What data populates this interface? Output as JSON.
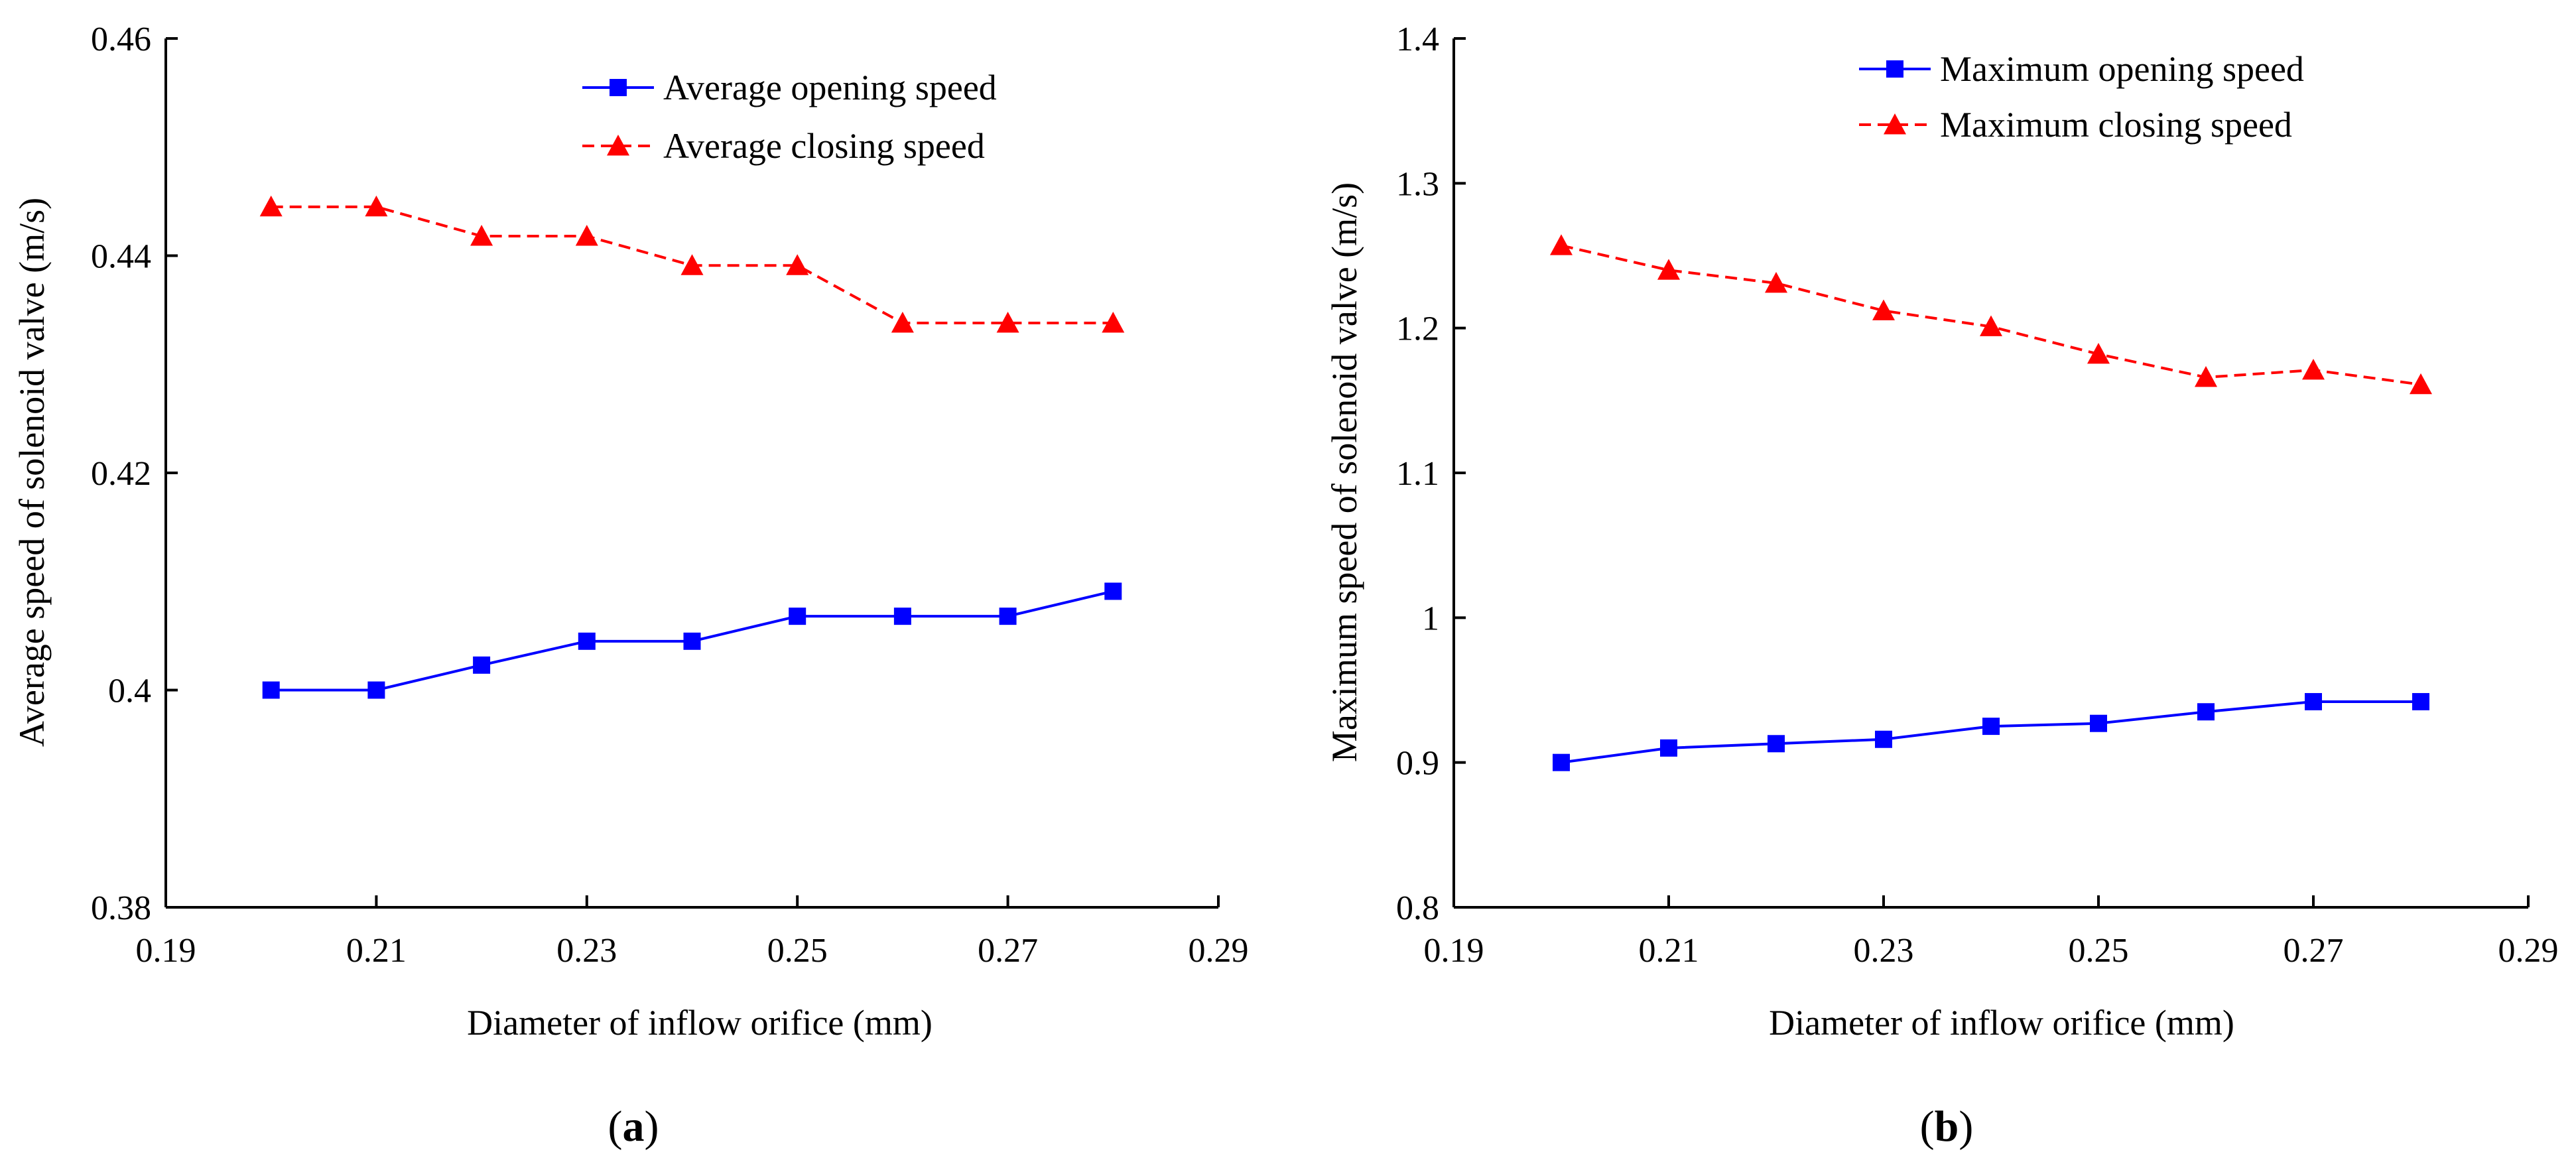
{
  "chart_data": [
    {
      "type": "line",
      "panel_label": "a",
      "title": "",
      "xlabel": "Diameter of inflow orifice (mm)",
      "ylabel": "Average speed of solenoid valve (m/s)",
      "xlim": [
        0.19,
        0.29
      ],
      "ylim": [
        0.38,
        0.46
      ],
      "x_ticks": [
        "0.19",
        "0.21",
        "0.23",
        "0.25",
        "0.27",
        "0.29"
      ],
      "y_ticks": [
        "0.38",
        "0.4",
        "0.42",
        "0.44",
        "0.46"
      ],
      "legend_position": "top-right",
      "x": [
        0.2,
        0.21,
        0.22,
        0.23,
        0.24,
        0.25,
        0.26,
        0.27,
        0.28
      ],
      "series": [
        {
          "name": "Average opening speed",
          "color": "#0000ff",
          "marker": "square",
          "line_style": "solid",
          "values": [
            0.4,
            0.4,
            0.4023,
            0.4045,
            0.4045,
            0.4068,
            0.4068,
            0.4068,
            0.4091
          ]
        },
        {
          "name": "Average closing speed",
          "color": "#ff0000",
          "marker": "triangle",
          "line_style": "dashed",
          "values": [
            0.4445,
            0.4445,
            0.4418,
            0.4418,
            0.4391,
            0.4391,
            0.4338,
            0.4338,
            0.4338
          ]
        }
      ]
    },
    {
      "type": "line",
      "panel_label": "b",
      "title": "",
      "xlabel": "Diameter of inflow orifice (mm)",
      "ylabel": "Maximum speed of solenoid valve (m/s)",
      "xlim": [
        0.19,
        0.29
      ],
      "ylim": [
        0.8,
        1.4
      ],
      "x_ticks": [
        "0.19",
        "0.21",
        "0.23",
        "0.25",
        "0.27",
        "0.29"
      ],
      "y_ticks": [
        "0.8",
        "0.9",
        "1",
        "1.1",
        "1.2",
        "1.3",
        "1.4"
      ],
      "legend_position": "top-right",
      "x": [
        0.2,
        0.21,
        0.22,
        0.23,
        0.24,
        0.25,
        0.26,
        0.27,
        0.28
      ],
      "series": [
        {
          "name": "Maximum opening speed",
          "color": "#0000ff",
          "marker": "square",
          "line_style": "solid",
          "values": [
            0.9,
            0.91,
            0.913,
            0.916,
            0.925,
            0.927,
            0.935,
            0.942,
            0.942
          ]
        },
        {
          "name": "Maximum closing speed",
          "color": "#ff0000",
          "marker": "triangle",
          "line_style": "dashed",
          "values": [
            1.257,
            1.24,
            1.231,
            1.212,
            1.201,
            1.182,
            1.166,
            1.171,
            1.161
          ]
        }
      ]
    }
  ]
}
